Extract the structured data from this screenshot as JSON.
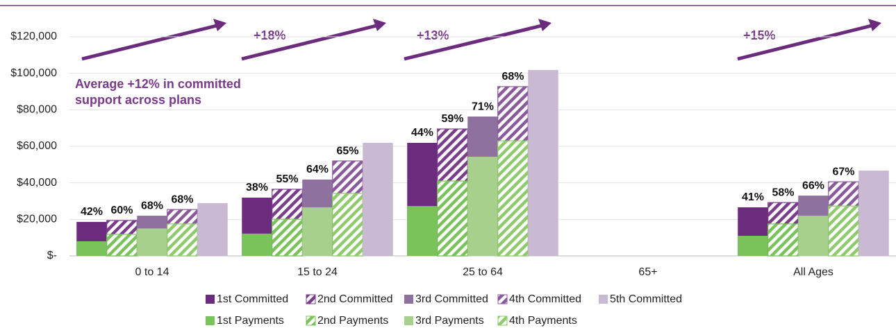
{
  "chart_data": {
    "type": "bar",
    "categories": [
      "0 to 14",
      "15 to 24",
      "25 to 64",
      "65+",
      "All Ages"
    ],
    "ylim": [
      0,
      120000
    ],
    "yticks": [
      {
        "value": 0,
        "label": "$-"
      },
      {
        "value": 20000,
        "label": "$20,000"
      },
      {
        "value": 40000,
        "label": "$40,000"
      },
      {
        "value": 60000,
        "label": "$60,000"
      },
      {
        "value": 80000,
        "label": "$80,000"
      },
      {
        "value": 100000,
        "label": "$100,000"
      },
      {
        "value": 120000,
        "label": "$120,000"
      }
    ],
    "grid": true,
    "series": [
      {
        "name": "1st Committed",
        "color": "#6b2c7e",
        "values": [
          18600,
          31900,
          61900,
          null,
          26600
        ],
        "labels": [
          "42%",
          "38%",
          "44%",
          null,
          "41%"
        ]
      },
      {
        "name": "2nd Committed",
        "color": "#7a3d8c",
        "pattern": "hatch",
        "values": [
          19400,
          36500,
          69500,
          null,
          29200
        ],
        "labels": [
          "60%",
          "55%",
          "59%",
          null,
          "58%"
        ]
      },
      {
        "name": "3rd Committed",
        "color": "#8f719f",
        "values": [
          22000,
          41800,
          76300,
          null,
          33000
        ],
        "labels": [
          "68%",
          "64%",
          "71%",
          null,
          "66%"
        ]
      },
      {
        "name": "4th Committed",
        "color": "#8a5a9c",
        "pattern": "hatch",
        "values": [
          25400,
          52000,
          92700,
          null,
          40600
        ],
        "labels": [
          "68%",
          "65%",
          "68%",
          null,
          "67%"
        ]
      },
      {
        "name": "5th Committed",
        "color": "#c9b9d3",
        "values": [
          28900,
          61900,
          101800,
          null,
          46700
        ]
      }
    ],
    "overlay_series": [
      {
        "name": "1st Payments",
        "color": "#7ac25a",
        "values": [
          8000,
          12200,
          27300,
          null,
          11000
        ]
      },
      {
        "name": "2nd Payments",
        "color": "#7ac25a",
        "pattern": "hatch",
        "values": [
          11800,
          20100,
          41000,
          null,
          17500
        ]
      },
      {
        "name": "3rd Payments",
        "color": "#a8d08d",
        "values": [
          15000,
          26600,
          54300,
          null,
          22000
        ]
      },
      {
        "name": "4th Payments",
        "color": "#8fca6c",
        "pattern": "hatch",
        "values": [
          17500,
          34200,
          63000,
          null,
          27300
        ]
      }
    ],
    "annotations": [
      {
        "text": [
          "Average +12% in committed",
          "support across plans"
        ]
      },
      {
        "text": "+18%"
      },
      {
        "text": "+13%"
      },
      {
        "text": "+15%"
      }
    ]
  }
}
